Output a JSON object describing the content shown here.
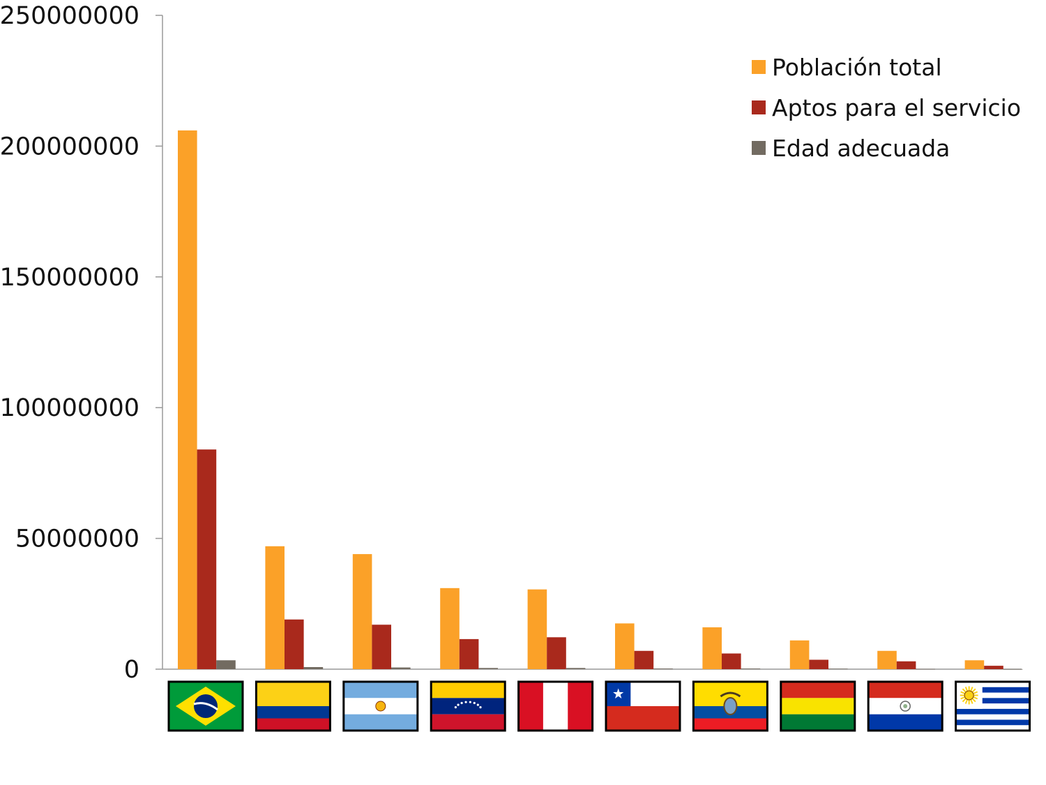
{
  "chart_data": {
    "type": "bar",
    "title": "",
    "xlabel": "",
    "ylabel": "",
    "ylim": [
      0,
      250000000
    ],
    "y_ticks": [
      "0",
      "50000000",
      "100000000",
      "150000000",
      "200000000",
      "250000000"
    ],
    "grid": false,
    "legend_position": "top-right",
    "categories": [
      "Brazil",
      "Colombia",
      "Argentina",
      "Venezuela",
      "Peru",
      "Chile",
      "Ecuador",
      "Bolivia",
      "Paraguay",
      "Uruguay"
    ],
    "category_icons": [
      "flag-brazil",
      "flag-colombia",
      "flag-argentina",
      "flag-venezuela",
      "flag-peru",
      "flag-chile",
      "flag-ecuador",
      "flag-bolivia",
      "flag-paraguay",
      "flag-uruguay"
    ],
    "series": [
      {
        "name": "Población total",
        "color": "#FBA128",
        "values": [
          206000000,
          47000000,
          44000000,
          31000000,
          30500000,
          17500000,
          16000000,
          11000000,
          7000000,
          3400000
        ]
      },
      {
        "name": "Aptos para el servicio",
        "color": "#A9291C",
        "values": [
          84000000,
          19000000,
          17000000,
          11500000,
          12200000,
          7000000,
          6000000,
          3600000,
          3000000,
          1300000
        ]
      },
      {
        "name": "Edad adecuada",
        "color": "#726B61",
        "values": [
          3400000,
          800000,
          650000,
          450000,
          450000,
          250000,
          250000,
          200000,
          100000,
          50000
        ]
      }
    ]
  }
}
